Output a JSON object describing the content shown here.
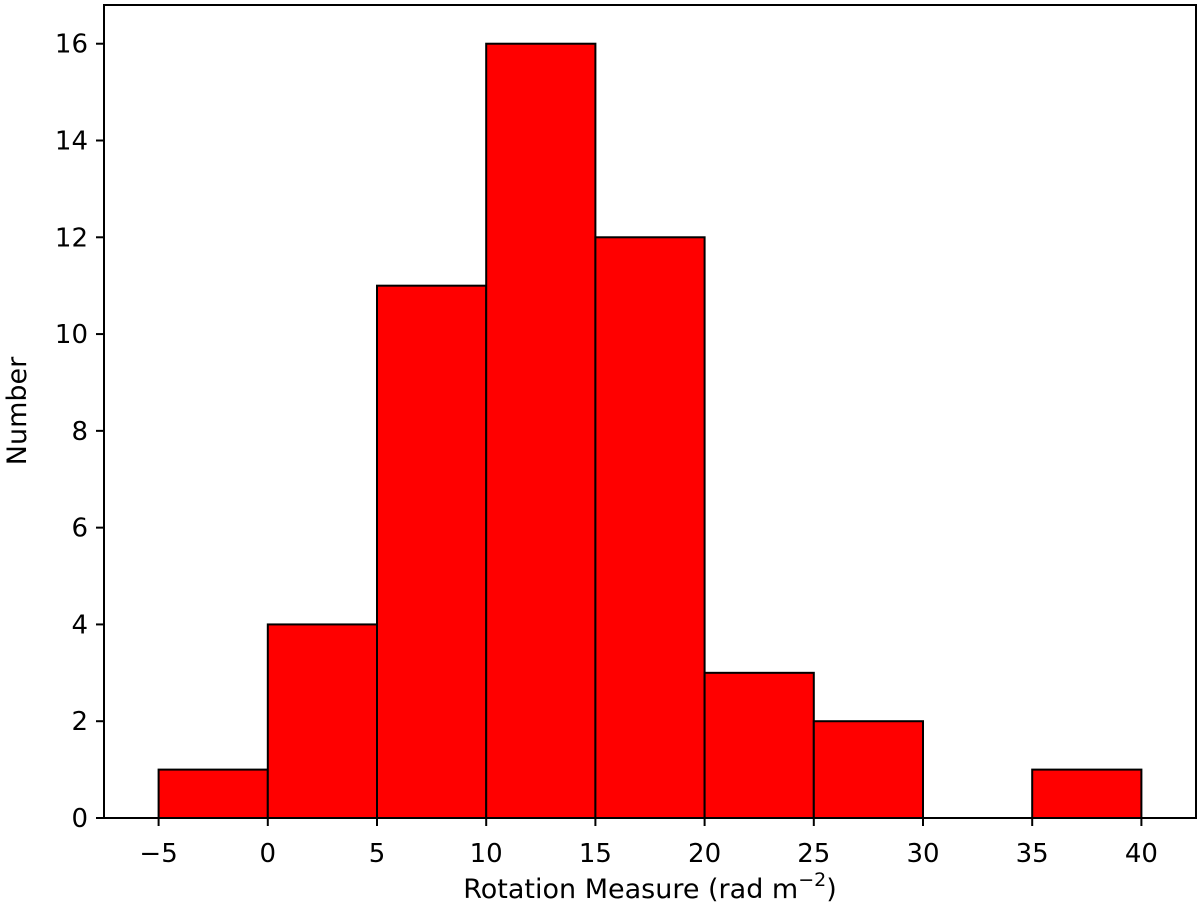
{
  "chart_data": {
    "type": "bar",
    "subtype": "histogram",
    "title": "",
    "xlabel": "Rotation Measure (rad m",
    "xlabel_superscript": "−2",
    "xlabel_suffix": ")",
    "ylabel": "Number",
    "bins": [
      {
        "x0": -5,
        "x1": 0,
        "count": 1
      },
      {
        "x0": 0,
        "x1": 5,
        "count": 4
      },
      {
        "x0": 5,
        "x1": 10,
        "count": 11
      },
      {
        "x0": 10,
        "x1": 15,
        "count": 16
      },
      {
        "x0": 15,
        "x1": 20,
        "count": 12
      },
      {
        "x0": 20,
        "x1": 25,
        "count": 3
      },
      {
        "x0": 25,
        "x1": 30,
        "count": 2
      },
      {
        "x0": 30,
        "x1": 35,
        "count": 0
      },
      {
        "x0": 35,
        "x1": 40,
        "count": 1
      }
    ],
    "xticks": [
      -5,
      0,
      5,
      10,
      15,
      20,
      25,
      30,
      35,
      40
    ],
    "xtick_labels": [
      "−5",
      "0",
      "5",
      "10",
      "15",
      "20",
      "25",
      "30",
      "35",
      "40"
    ],
    "yticks": [
      0,
      2,
      4,
      6,
      8,
      10,
      12,
      14,
      16
    ],
    "ytick_labels": [
      "0",
      "2",
      "4",
      "6",
      "8",
      "10",
      "12",
      "14",
      "16"
    ],
    "xlim": [
      -7.5,
      42.5
    ],
    "ylim": [
      0,
      16.8
    ],
    "grid": false,
    "legend": "none",
    "colors": {
      "bar_fill": "#ff0000",
      "bar_edge": "#000000",
      "axes": "#000000"
    }
  }
}
